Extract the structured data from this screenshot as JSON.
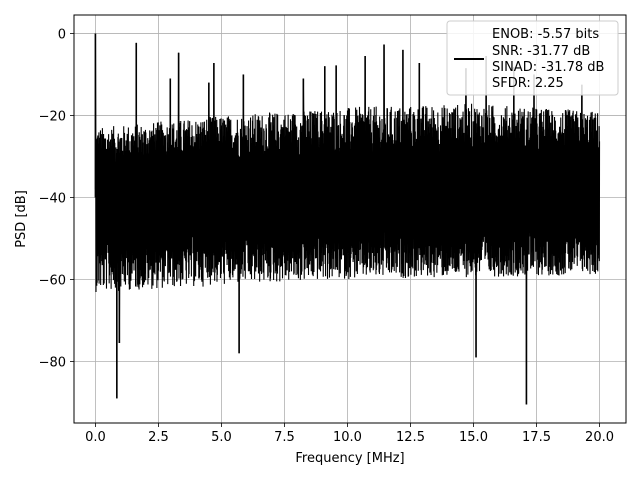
{
  "chart_data": {
    "type": "line",
    "xlabel": "Frequency [MHz]",
    "ylabel": "PSD [dB]",
    "xlim": [
      -0.85,
      21.05
    ],
    "ylim": [
      -95,
      4.5
    ],
    "xticks": [
      "0.0",
      "2.5",
      "5.0",
      "7.5",
      "10.0",
      "12.5",
      "15.0",
      "17.5",
      "20.0"
    ],
    "xtick_values": [
      0,
      2.5,
      5,
      7.5,
      10,
      12.5,
      15,
      17.5,
      20
    ],
    "yticks": [
      "0",
      "−20",
      "−40",
      "−60",
      "−80"
    ],
    "ytick_values": [
      0,
      -20,
      -40,
      -60,
      -80
    ],
    "grid": true,
    "legend_position": "top-right",
    "series": [
      {
        "legend_lines": [
          "ENOB: -5.57 bits",
          "SNR: -31.77 dB",
          "SINAD: -31.78 dB",
          "SFDR: 2.25"
        ],
        "color": "#000000",
        "x_range": [
          0,
          20
        ],
        "baseline_db": -40,
        "envelope_top_db": [
          [
            0,
            -23
          ],
          [
            5,
            -20
          ],
          [
            10,
            -18
          ],
          [
            15,
            -17
          ],
          [
            20,
            -19
          ]
        ],
        "envelope_bottom_db": [
          [
            0,
            -62
          ],
          [
            10,
            -59
          ],
          [
            20,
            -58
          ]
        ],
        "peaks": [
          {
            "x": 0.0,
            "y": 0.0
          },
          {
            "x": 1.62,
            "y": -2.3
          },
          {
            "x": 2.97,
            "y": -11
          },
          {
            "x": 3.3,
            "y": -4.7
          },
          {
            "x": 4.5,
            "y": -12
          },
          {
            "x": 4.7,
            "y": -7.2
          },
          {
            "x": 5.87,
            "y": -10
          },
          {
            "x": 8.25,
            "y": -11
          },
          {
            "x": 9.1,
            "y": -8
          },
          {
            "x": 9.55,
            "y": -7.8
          },
          {
            "x": 10.7,
            "y": -5.5
          },
          {
            "x": 11.45,
            "y": -2.7
          },
          {
            "x": 12.2,
            "y": -4
          },
          {
            "x": 12.85,
            "y": -7.2
          },
          {
            "x": 14.7,
            "y": -8.5
          },
          {
            "x": 15.5,
            "y": -5.5
          },
          {
            "x": 16.6,
            "y": -8.2
          },
          {
            "x": 17.4,
            "y": -10
          },
          {
            "x": 19.3,
            "y": -12.5
          }
        ],
        "dips": [
          {
            "x": 0.85,
            "y": -89
          },
          {
            "x": 0.95,
            "y": -75.5
          },
          {
            "x": 5.7,
            "y": -78
          },
          {
            "x": 15.1,
            "y": -79
          },
          {
            "x": 17.1,
            "y": -90.5
          }
        ]
      }
    ]
  }
}
